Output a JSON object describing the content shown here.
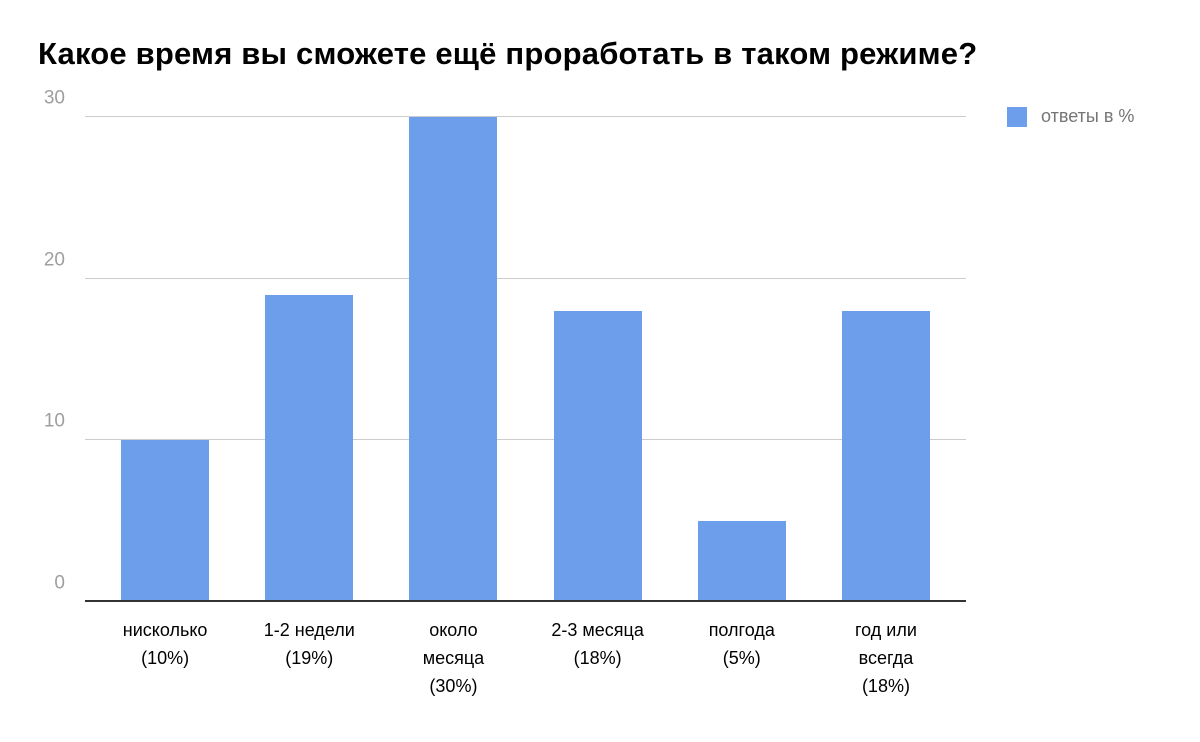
{
  "chart_data": {
    "type": "bar",
    "title": "Какое время вы сможете ещё проработать в таком режиме?",
    "categories": [
      "нисколько (10%)",
      "1-2 недели (19%)",
      "около месяца (30%)",
      "2-3 месяца (18%)",
      "полгода (5%)",
      "год или всегда (18%)"
    ],
    "category_labels": [
      "нисколько\n(10%)",
      "1-2 недели\n(19%)",
      "около\nмесяца\n(30%)",
      "2-3 месяца\n(18%)",
      "полгода\n(5%)",
      "год или\nвсегда\n(18%)"
    ],
    "values": [
      10,
      19,
      30,
      18,
      5,
      18
    ],
    "series_name": "ответы в %",
    "legend": "ответы в %",
    "legend_position": "top-right",
    "xlabel": "",
    "ylabel": "",
    "ylim": [
      0,
      30
    ],
    "yticks": [
      0,
      10,
      20,
      30
    ],
    "grid": true,
    "bar_color": "#6d9eeb",
    "gridline_color": "#cccccc",
    "axis_line_color": "#333333",
    "ytick_color": "#9e9e9e",
    "xlabel_color": "#000000",
    "title_color": "#000000",
    "legend_text_color": "#757575",
    "background_color": "#ffffff"
  }
}
